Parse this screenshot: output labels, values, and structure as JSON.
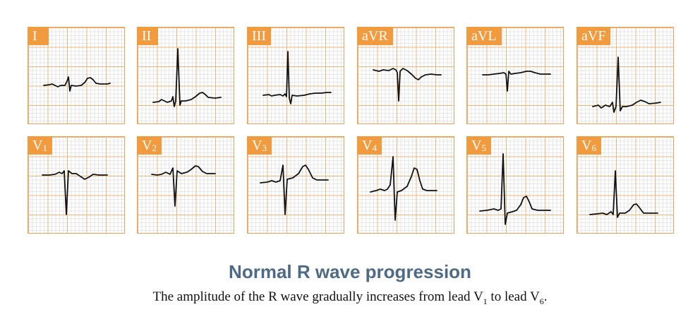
{
  "leads": [
    {
      "label": "I",
      "sub": ""
    },
    {
      "label": "II",
      "sub": ""
    },
    {
      "label": "III",
      "sub": ""
    },
    {
      "label": "aVR",
      "sub": ""
    },
    {
      "label": "aVL",
      "sub": ""
    },
    {
      "label": "aVF",
      "sub": ""
    },
    {
      "label": "V",
      "sub": "1"
    },
    {
      "label": "V",
      "sub": "2"
    },
    {
      "label": "V",
      "sub": "3"
    },
    {
      "label": "V",
      "sub": "4"
    },
    {
      "label": "V",
      "sub": "5"
    },
    {
      "label": "V",
      "sub": "6"
    }
  ],
  "title": "Normal R wave progression",
  "subtitle": {
    "part1": "The amplitude of the R wave gradually increases from lead V",
    "sub1": "1",
    "part2": " to lead V",
    "sub2": "6",
    "part3": "."
  },
  "colors": {
    "accent": "#f29a3e",
    "grid_major": "#f3b47a",
    "grid_minor": "#e6e6e6",
    "trace": "#111111",
    "title": "#4f6a84"
  }
}
